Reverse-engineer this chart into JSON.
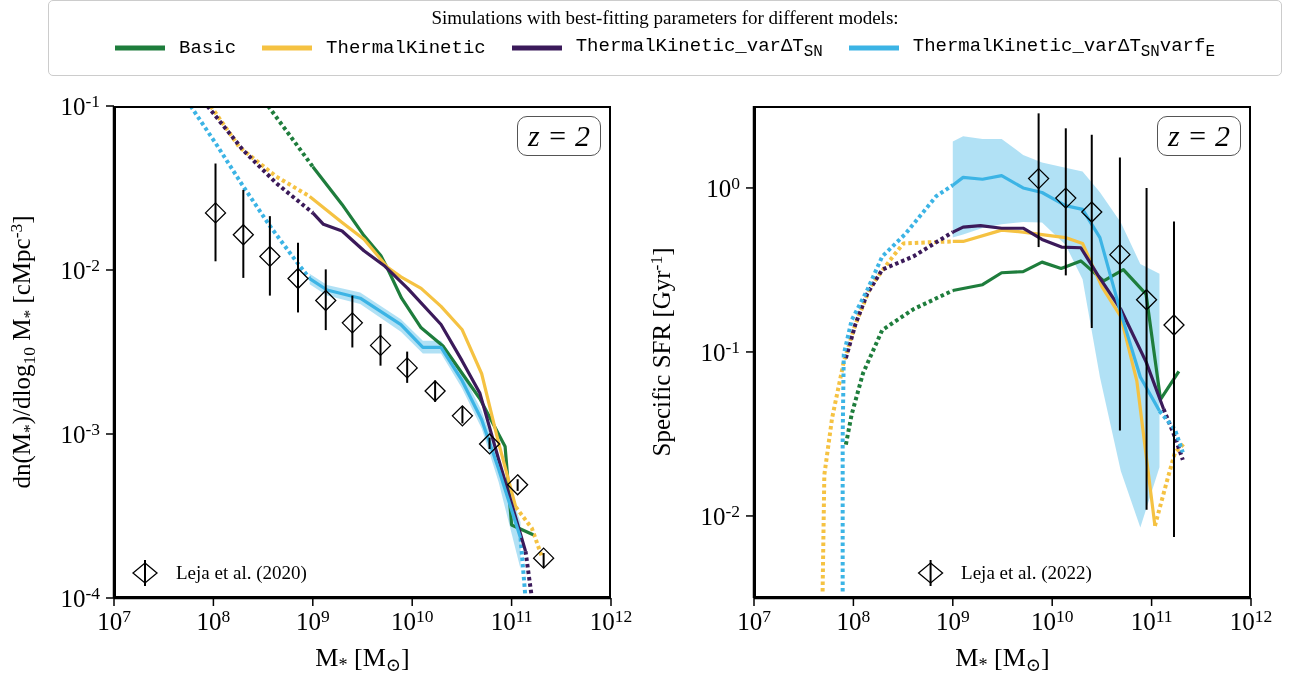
{
  "chart_data": [
    {
      "type": "line",
      "xlabel": "M$_{*}$ [M$_{⊙}$]",
      "ylabel": "dn(M$_{*}$)/dlog$_{10}$ M$_{*}$ [cMpc$^{-3}$]",
      "legend_title": "Simulations with best-fitting parameters for different models:",
      "legend": "top",
      "log": "xy",
      "annotations": [
        "z = 2"
      ],
      "xlim": [
        10000000,
        1000000000000
      ],
      "xticks": [
        {
          "value": 10000000,
          "label": "10$^{7}$"
        },
        {
          "value": 100000000,
          "label": "10$^{8}$"
        },
        {
          "value": 1000000000,
          "label": "10$^{9}$"
        },
        {
          "value": 10000000000,
          "label": "10$^{10}$"
        },
        {
          "value": 100000000000,
          "label": "10$^{11}$"
        },
        {
          "value": 1000000000000,
          "label": "10$^{12}$"
        }
      ],
      "ylim": [
        0.0001,
        0.1
      ],
      "yticks": [
        {
          "value": 0.0001,
          "label": "10$^{-4}$"
        },
        {
          "value": 0.001,
          "label": "10$^{-3}$"
        },
        {
          "value": 0.01,
          "label": "10$^{-2}$"
        },
        {
          "value": 0.1,
          "label": "10$^{-1}$"
        }
      ],
      "series": [
        {
          "type": "line",
          "line_style": "dotted",
          "color": "#1e7d3c",
          "x": [
            355000000,
            600000000,
            1000000000
          ],
          "values": [
            0.1,
            0.065,
            0.0426
          ]
        },
        {
          "type": "line",
          "line_style": "dotted",
          "color": "#f5c242",
          "x": [
            94000000,
            182000000,
            430000000,
            930000000
          ],
          "values": [
            0.1,
            0.0562,
            0.0371,
            0.0281
          ]
        },
        {
          "type": "line",
          "line_style": "dotted",
          "color": "#3b1a5a",
          "x": [
            87000000,
            200000000,
            430000000,
            1000000000
          ],
          "values": [
            0.1,
            0.0536,
            0.0338,
            0.0223
          ]
        },
        {
          "type": "line",
          "line_style": "dotted",
          "color": "#3cb4e5",
          "x": [
            59000000,
            106000000,
            200000000,
            369000000,
            690000000,
            930000000
          ],
          "values": [
            0.1,
            0.0589,
            0.0323,
            0.0186,
            0.01117,
            0.00887
          ]
        },
        {
          "type": "line",
          "line_style": "dotted",
          "color": "#f5c242",
          "x": [
            110000000000,
            160000000000,
            204000000000
          ],
          "values": [
            0.000359,
            0.000266,
            0.000175
          ]
        },
        {
          "type": "line",
          "line_style": "dotted",
          "color": "#3b1a5a",
          "x": [
            138000000000,
            160000000000
          ],
          "values": [
            0.000193,
            0.0001
          ]
        },
        {
          "type": "line",
          "line_style": "dotted",
          "color": "#3cb4e5",
          "x": [
            123000000000,
            138000000000
          ],
          "values": [
            0.000232,
            0.0001
          ]
        },
        {
          "type": "line",
          "name": "Basic",
          "line_style": "solid",
          "color": "#1e7d3c",
          "x": [
            1000000000,
            1970000000,
            3270000000,
            4830000000,
            5640000000,
            7820000000,
            12300000000,
            20400000000,
            48000000000,
            86000000000,
            100000000000,
            165000000000
          ],
          "values": [
            0.0426,
            0.0251,
            0.0162,
            0.01225,
            0.0102,
            0.00673,
            0.00444,
            0.00344,
            0.00164,
            0.00084,
            0.000279,
            0.000243
          ]
        },
        {
          "type": "line",
          "name": "ThermalKinetic",
          "line_style": "solid",
          "color": "#f5c242",
          "x": [
            930000000,
            1970000000,
            3270000000,
            5640000000,
            7700000000,
            12300000000,
            19500000000,
            31700000000,
            50000000000,
            74000000000,
            110000000000
          ],
          "values": [
            0.0281,
            0.0195,
            0.0154,
            0.0104,
            0.00908,
            0.00773,
            0.006,
            0.00434,
            0.00233,
            0.000884,
            0.000359
          ]
        },
        {
          "type": "line",
          "name": "ThermalKinetic_varΔT$_{SN}$",
          "line_style": "solid",
          "color": "#3b1a5a",
          "x": [
            1000000000,
            1280000000,
            1970000000,
            3270000000,
            5200000000,
            9000000000,
            19500000000,
            31700000000,
            48000000000,
            74000000000,
            138000000000
          ],
          "values": [
            0.0223,
            0.019,
            0.0173,
            0.0131,
            0.01066,
            0.00773,
            0.00465,
            0.0028,
            0.00177,
            0.000702,
            0.000193
          ]
        },
        {
          "type": "line",
          "name": "ThermalKinetic_varΔT$_{SN}$varf$_{E}$",
          "line_style": "solid",
          "color": "#3cb4e5",
          "x": [
            930000000,
            1390000000,
            3000000000,
            7700000000,
            12800000000,
            19500000000,
            31700000000,
            50000000000,
            74000000000,
            123000000000
          ],
          "values": [
            0.00887,
            0.00755,
            0.00673,
            0.00465,
            0.00337,
            0.00337,
            0.00212,
            0.00122,
            0.000611,
            0.000232
          ],
          "lower": [
            0.0082,
            0.007,
            0.0062,
            0.0042,
            0.0031,
            0.0031,
            0.0019,
            0.00108,
            0.00051,
            0.00015
          ],
          "upper": [
            0.0095,
            0.0081,
            0.0073,
            0.005,
            0.0037,
            0.0037,
            0.0024,
            0.00138,
            0.00072,
            0.00029
          ]
        },
        {
          "type": "scatter",
          "name": "Leja et al. (2020)",
          "marker": "diamond",
          "color": "#000000",
          "x": [
            105000000,
            200000000,
            370000000,
            710000000,
            1350000000,
            2500000000,
            4800000000,
            8900000000,
            17000000000,
            32000000000,
            60000000000,
            115000000000,
            210000000000
          ],
          "values": [
            0.0223,
            0.0164,
            0.0121,
            0.00887,
            0.00652,
            0.00476,
            0.00347,
            0.00253,
            0.00183,
            0.00129,
            0.00087,
            0.00049,
            0.000175
          ],
          "errors": [
            [
              0.0113,
              0.0446
            ],
            [
              0.00895,
              0.0308
            ],
            [
              0.00698,
              0.0213
            ],
            [
              0.00551,
              0.01466
            ],
            [
              0.0043,
              0.01009
            ],
            [
              0.00337,
              0.00698
            ],
            [
              0.00261,
              0.00469
            ],
            [
              0.00205,
              0.00318
            ],
            [
              0.00157,
              0.00212
            ],
            [
              0.00116,
              0.00147
            ],
            [
              0.00081,
              0.00095
            ],
            [
              0.00045,
              0.00053
            ],
            [
              0.000153,
              0.000188
            ]
          ]
        }
      ]
    },
    {
      "type": "line",
      "xlabel": "M$_{*}$ [M$_{⊙}$]",
      "ylabel": "Specific SFR [Gyr$^{-1}$]",
      "legend": "bottom",
      "log": "xy",
      "annotations": [
        "z = 2"
      ],
      "xlim": [
        10000000,
        1000000000000
      ],
      "xticks": [
        {
          "value": 10000000,
          "label": "10$^{7}$"
        },
        {
          "value": 100000000,
          "label": "10$^{8}$"
        },
        {
          "value": 1000000000,
          "label": "10$^{9}$"
        },
        {
          "value": 10000000000,
          "label": "10$^{10}$"
        },
        {
          "value": 100000000000,
          "label": "10$^{11}$"
        },
        {
          "value": 1000000000000,
          "label": "10$^{12}$"
        }
      ],
      "ylim": [
        0.00316,
        3.16
      ],
      "yticks": [
        {
          "value": 0.01,
          "label": "10$^{-2}$"
        },
        {
          "value": 0.1,
          "label": "10$^{-1}$"
        },
        {
          "value": 1,
          "label": "10$^{0}$"
        }
      ],
      "series": [
        {
          "type": "line",
          "line_style": "dotted",
          "color": "#1e7d3c",
          "x": [
            84000000,
            96000000,
            125000000,
            195000000,
            400000000,
            1000000000
          ],
          "values": [
            0.0272,
            0.0415,
            0.0742,
            0.136,
            0.182,
            0.237
          ]
        },
        {
          "type": "line",
          "line_style": "dotted",
          "color": "#f5c242",
          "x": [
            49000000,
            51000000,
            61000000,
            80000000,
            105000000,
            149000000,
            233000000,
            319000000,
            520000000,
            1000000000
          ],
          "values": [
            0.00346,
            0.0178,
            0.0394,
            0.087,
            0.148,
            0.25,
            0.362,
            0.459,
            0.465,
            0.472
          ]
        },
        {
          "type": "line",
          "line_style": "dotted",
          "color": "#3b1a5a",
          "x": [
            84000000,
            105000000,
            137000000,
            195000000,
            400000000,
            1000000000
          ],
          "values": [
            0.0916,
            0.148,
            0.225,
            0.318,
            0.382,
            0.538
          ]
        },
        {
          "type": "line",
          "line_style": "dotted",
          "color": "#3cb4e5",
          "x": [
            78000000,
            78000000,
            80000000,
            96000000,
            137000000,
            195000000,
            334000000,
            680000000,
            1000000000
          ],
          "values": [
            0.00346,
            0.0302,
            0.0966,
            0.156,
            0.237,
            0.382,
            0.525,
            0.89,
            1.04
          ]
        },
        {
          "type": "line",
          "line_style": "dotted",
          "color": "#f5c242",
          "x": [
            108000000000,
            145000000000,
            172000000000,
            215000000000
          ],
          "values": [
            0.0087,
            0.0169,
            0.0244,
            0.0279
          ]
        },
        {
          "type": "line",
          "line_style": "dotted",
          "color": "#3b1a5a",
          "x": [
            132000000000,
            172000000000,
            206000000000
          ],
          "values": [
            0.0449,
            0.0302,
            0.022
          ]
        },
        {
          "type": "line",
          "line_style": "dotted",
          "color": "#3cb4e5",
          "x": [
            120000000000,
            172000000000,
            206000000000
          ],
          "values": [
            0.0437,
            0.0336,
            0.0244
          ]
        },
        {
          "type": "line",
          "line_style": "solid",
          "color": "#1e7d3c",
          "x": [
            1000000000,
            1990000000,
            3100000000,
            5100000000,
            7900000000,
            12300000000,
            19400000000,
            33000000000,
            52000000000,
            88000000000,
            123000000000,
            188000000000
          ],
          "values": [
            0.237,
            0.257,
            0.304,
            0.309,
            0.353,
            0.323,
            0.359,
            0.271,
            0.318,
            0.225,
            0.0513,
            0.0762
          ]
        },
        {
          "type": "line",
          "line_style": "solid",
          "color": "#f5c242",
          "x": [
            1000000000,
            1270000000,
            3100000000,
            5100000000,
            7900000000,
            13600000000,
            20200000000,
            31600000000,
            49000000000,
            71000000000,
            108000000000
          ],
          "values": [
            0.472,
            0.472,
            0.553,
            0.538,
            0.519,
            0.498,
            0.459,
            0.25,
            0.164,
            0.0667,
            0.0087
          ]
        },
        {
          "type": "line",
          "line_style": "solid",
          "color": "#3b1a5a",
          "x": [
            1000000000,
            1270000000,
            1900000000,
            3100000000,
            5100000000,
            7900000000,
            12400000000,
            19400000000,
            28900000000,
            49000000000,
            88000000000,
            132000000000
          ],
          "values": [
            0.538,
            0.577,
            0.589,
            0.568,
            0.568,
            0.485,
            0.436,
            0.432,
            0.293,
            0.182,
            0.087,
            0.0449
          ]
        },
        {
          "type": "line",
          "line_style": "solid",
          "color": "#3cb4e5",
          "x": [
            1000000000,
            1270000000,
            1990000000,
            3100000000,
            5100000000,
            7900000000,
            13600000000,
            20200000000,
            30200000000,
            49000000000,
            77000000000,
            120000000000
          ],
          "values": [
            1.04,
            1.16,
            1.13,
            1.19,
            1.0,
            0.938,
            0.78,
            0.74,
            0.498,
            0.173,
            0.0703,
            0.0437
          ],
          "lower": [
            0.498,
            0.52,
            0.57,
            0.6,
            0.62,
            0.615,
            0.45,
            0.278,
            0.0703,
            0.0188,
            0.0085,
            0.0198
          ],
          "upper": [
            1.92,
            2.07,
            1.99,
            1.99,
            1.59,
            1.43,
            1.33,
            1.26,
            0.94,
            0.615,
            0.344,
            0.3
          ]
        },
        {
          "type": "scatter",
          "name": "Leja et al. (2022)",
          "marker": "diamond",
          "color": "#000000",
          "x": [
            7300000000,
            13700000000,
            25000000000,
            48000000000,
            89000000000,
            168000000000
          ],
          "values": [
            1.14,
            0.867,
            0.713,
            0.392,
            0.208,
            0.146
          ],
          "errors": [
            [
              0.436,
              2.85
            ],
            [
              0.293,
              2.31
            ],
            [
              0.14,
              2.11
            ],
            [
              0.0332,
              1.535
            ],
            [
              0.0109,
              1.0
            ],
            [
              0.00743,
              0.625
            ]
          ]
        }
      ]
    }
  ]
}
